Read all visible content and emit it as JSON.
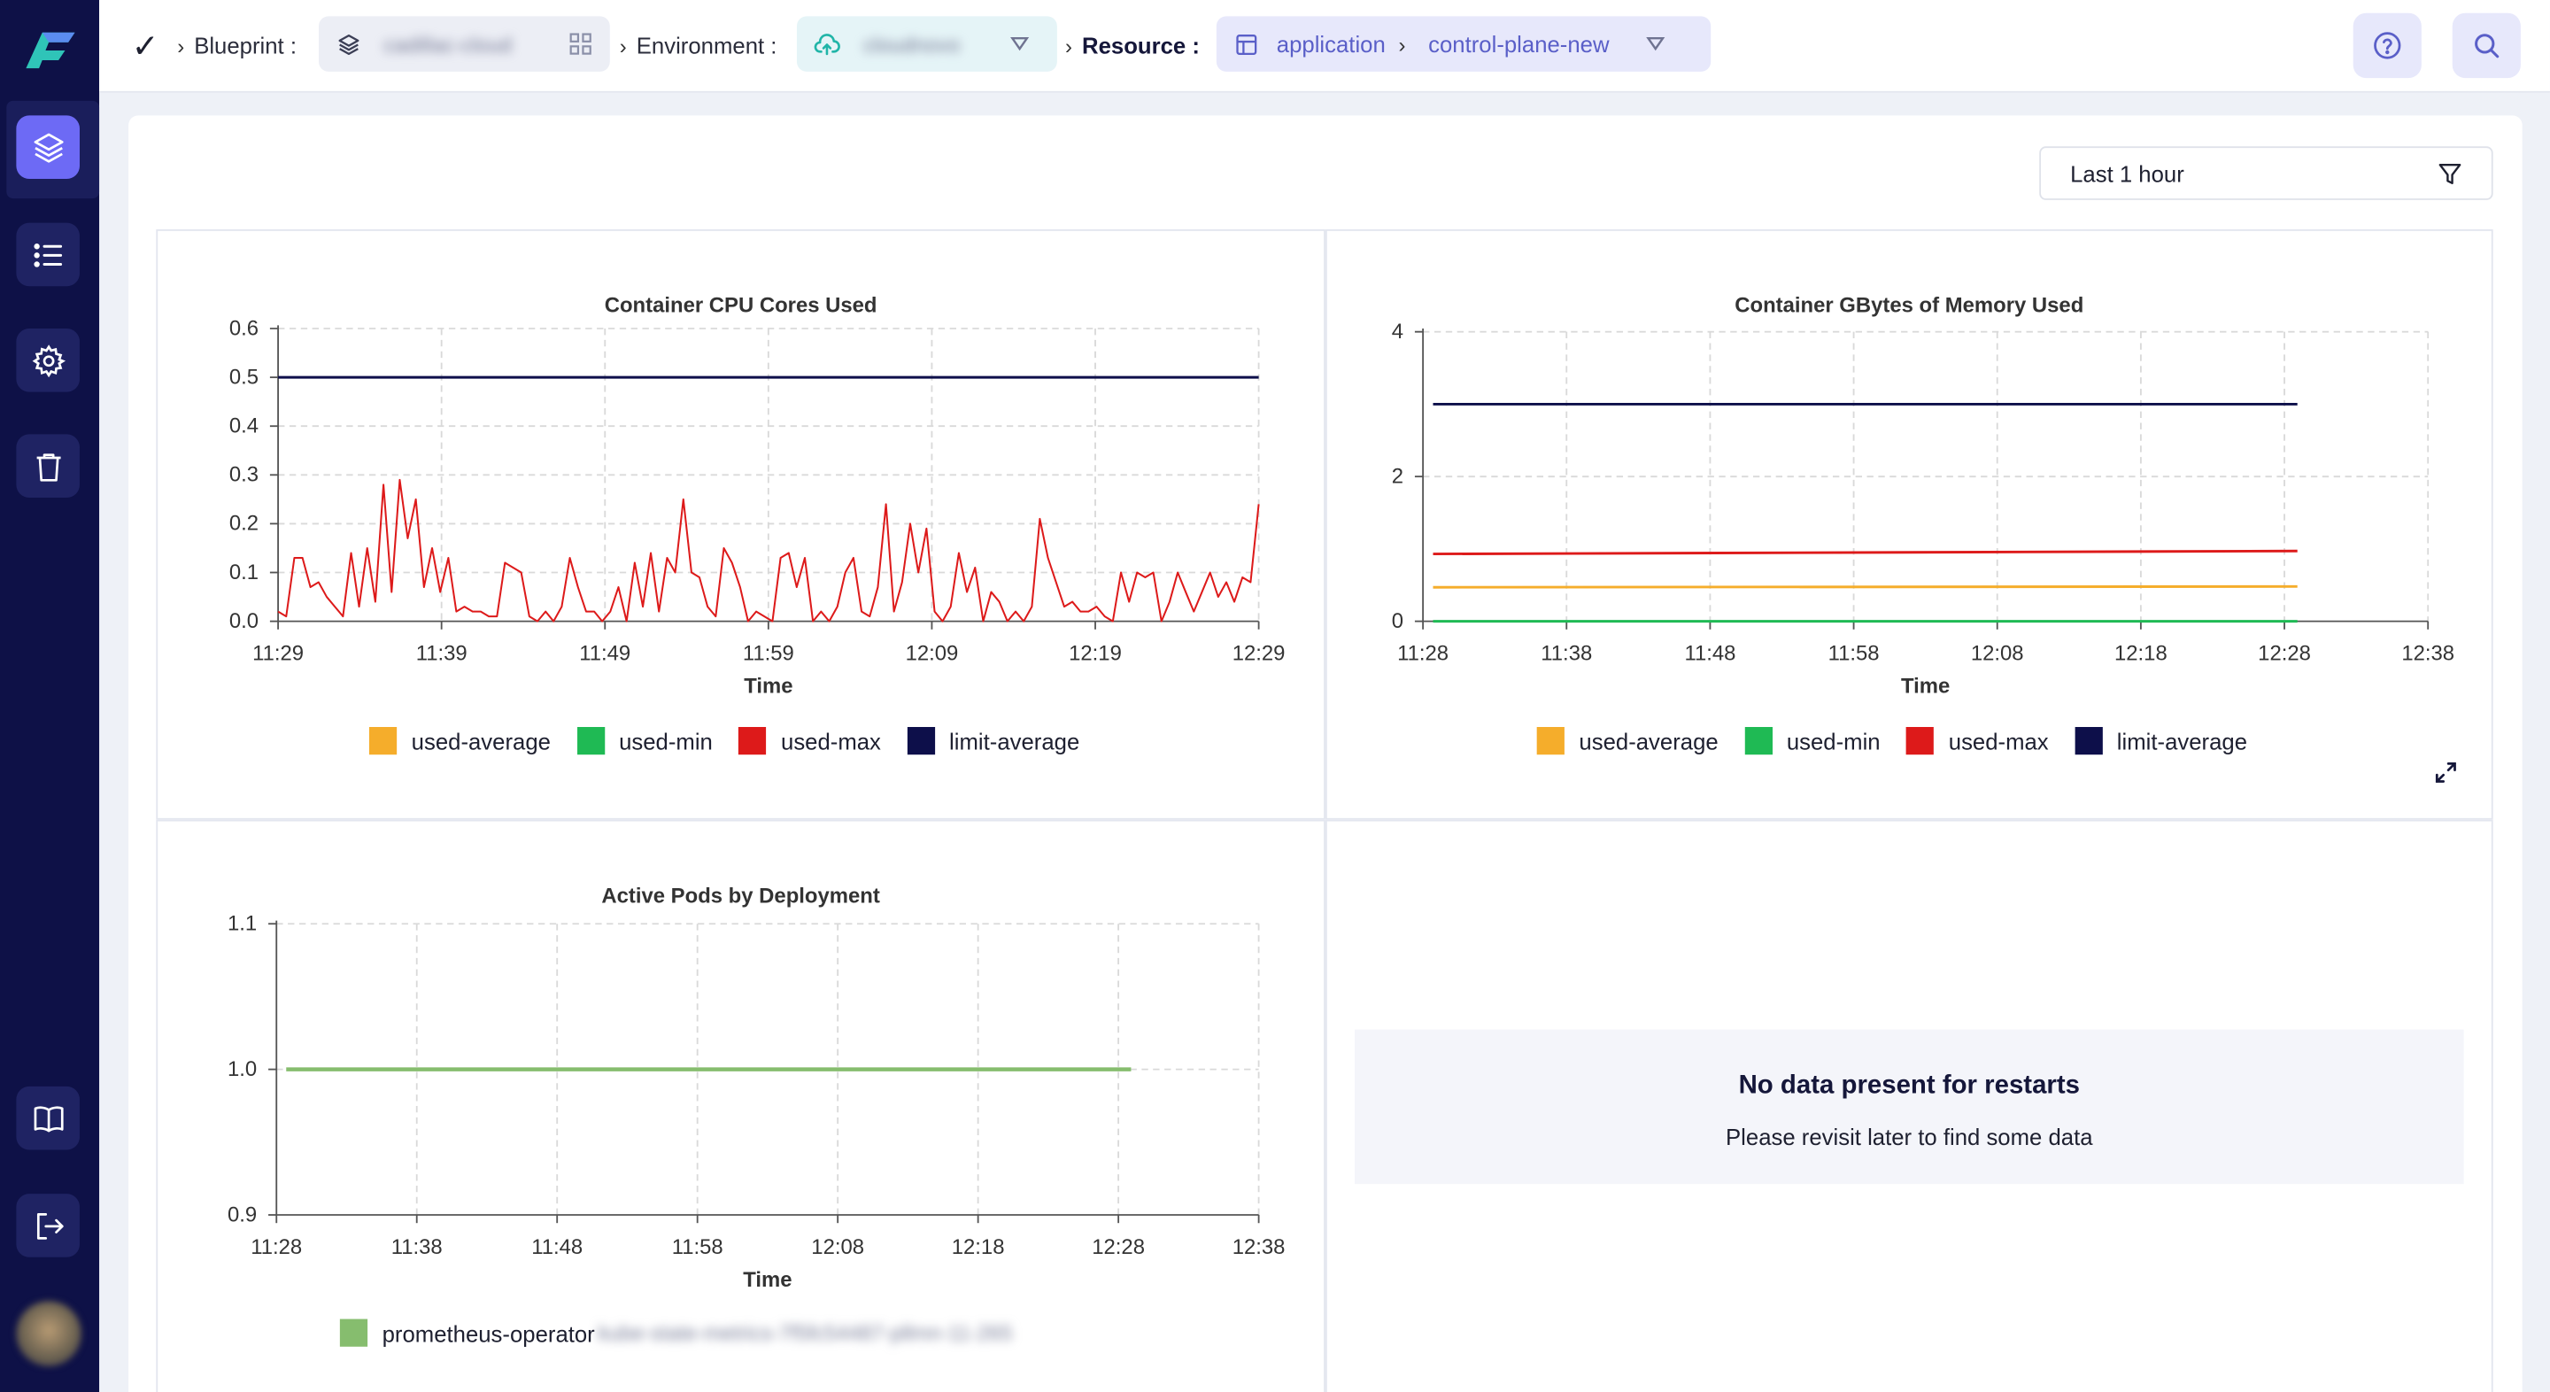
{
  "sidebar": {
    "items": [
      {
        "name": "layers-icon",
        "active": true
      },
      {
        "name": "list-icon",
        "active": false
      },
      {
        "name": "gear-icon",
        "active": false
      },
      {
        "name": "trash-icon",
        "active": false
      }
    ],
    "bottom_items": [
      {
        "name": "book-icon"
      },
      {
        "name": "logout-icon"
      }
    ]
  },
  "header": {
    "check_icon": "✓",
    "blueprint_label": "Blueprint :",
    "blueprint_value": "cadillac-cloud",
    "environment_label": "Environment :",
    "environment_value": "cloudnovo",
    "resource_label": "Resource :",
    "resource_type": "application",
    "resource_name": "control-plane-new"
  },
  "filter": {
    "label": "Last 1 hour"
  },
  "colors": {
    "used_average": "#f5ad2b",
    "used_min": "#1fba54",
    "used_max": "#dd1a1a",
    "limit_average": "#0d0f4a",
    "prometheus": "#86bd6e",
    "accent": "#6d6af5"
  },
  "charts": {
    "cpu": {
      "title": "Container CPU Cores Used",
      "xlabel": "Time",
      "legend": [
        "used-average",
        "used-min",
        "used-max",
        "limit-average"
      ]
    },
    "memory": {
      "title": "Container GBytes of Memory Used",
      "xlabel": "Time",
      "legend": [
        "used-average",
        "used-min",
        "used-max",
        "limit-average"
      ]
    },
    "pods": {
      "title": "Active Pods by Deployment",
      "xlabel": "Time",
      "legend_name": "prometheus-operator",
      "legend_blur": "kube-state-metrics-7f5fc54487-pllmn-11-265"
    }
  },
  "nodata": {
    "title": "No data present for restarts",
    "subtitle": "Please revisit later to find some data"
  },
  "chart_data": [
    {
      "type": "line",
      "title": "Container CPU Cores Used",
      "xlabel": "Time",
      "ylabel": "",
      "x_ticks": [
        "11:29",
        "11:39",
        "11:49",
        "11:59",
        "12:09",
        "12:19",
        "12:29"
      ],
      "y_ticks": [
        "0.0",
        "0.1",
        "0.2",
        "0.3",
        "0.4",
        "0.5",
        "0.6"
      ],
      "ylim": [
        0,
        0.6
      ],
      "grid": true,
      "legend_position": "bottom",
      "series": [
        {
          "name": "used-max",
          "values": [
            0.02,
            0.01,
            0.13,
            0.13,
            0.07,
            0.08,
            0.05,
            0.03,
            0.01,
            0.14,
            0.03,
            0.15,
            0.04,
            0.28,
            0.06,
            0.29,
            0.17,
            0.25,
            0.07,
            0.15,
            0.06,
            0.13,
            0.02,
            0.03,
            0.02,
            0.02,
            0.01,
            0.01,
            0.12,
            0.11,
            0.1,
            0.01,
            0.0,
            0.02,
            0.0,
            0.03,
            0.13,
            0.07,
            0.02,
            0.02,
            0.0,
            0.02,
            0.07,
            0.0,
            0.12,
            0.03,
            0.14,
            0.02,
            0.13,
            0.1,
            0.25,
            0.1,
            0.09,
            0.03,
            0.01,
            0.15,
            0.12,
            0.07,
            0.0,
            0.02,
            0.01,
            0.0,
            0.13,
            0.14,
            0.07,
            0.13,
            0.0,
            0.02,
            0.0,
            0.03,
            0.1,
            0.13,
            0.02,
            0.01,
            0.07,
            0.24,
            0.02,
            0.08,
            0.2,
            0.1,
            0.19,
            0.02,
            0.0,
            0.03,
            0.14,
            0.06,
            0.11,
            0.0,
            0.06,
            0.04,
            0.0,
            0.02,
            0.0,
            0.03,
            0.21,
            0.13,
            0.08,
            0.03,
            0.04,
            0.02,
            0.02,
            0.03,
            0.01,
            0.0,
            0.1,
            0.04,
            0.1,
            0.09,
            0.1,
            0.0,
            0.04,
            0.1,
            0.06,
            0.02,
            0.06,
            0.1,
            0.05,
            0.08,
            0.04,
            0.09,
            0.08,
            0.24
          ]
        },
        {
          "name": "limit-average",
          "values": [
            0.5,
            0.5
          ]
        }
      ]
    },
    {
      "type": "line",
      "title": "Container GBytes of Memory Used",
      "xlabel": "Time",
      "ylabel": "",
      "x_ticks": [
        "11:28",
        "11:38",
        "11:48",
        "11:58",
        "12:08",
        "12:18",
        "12:28",
        "12:38"
      ],
      "y_ticks": [
        "0",
        "2",
        "4"
      ],
      "ylim": [
        0,
        4
      ],
      "grid": true,
      "legend_position": "bottom",
      "series": [
        {
          "name": "used-average",
          "values": [
            0.47,
            0.48
          ]
        },
        {
          "name": "used-min",
          "values": [
            0.0,
            0.0
          ]
        },
        {
          "name": "used-max",
          "values": [
            0.93,
            0.97
          ]
        },
        {
          "name": "limit-average",
          "values": [
            3.0,
            3.0
          ]
        }
      ]
    },
    {
      "type": "line",
      "title": "Active Pods by Deployment",
      "xlabel": "Time",
      "ylabel": "",
      "x_ticks": [
        "11:28",
        "11:38",
        "11:48",
        "11:58",
        "12:08",
        "12:18",
        "12:28",
        "12:38"
      ],
      "y_ticks": [
        "0.9",
        "1.0",
        "1.1"
      ],
      "ylim": [
        0.9,
        1.1
      ],
      "grid": true,
      "legend_position": "bottom",
      "series": [
        {
          "name": "prometheus-operator",
          "values": [
            1.0,
            1.0
          ]
        }
      ]
    }
  ]
}
